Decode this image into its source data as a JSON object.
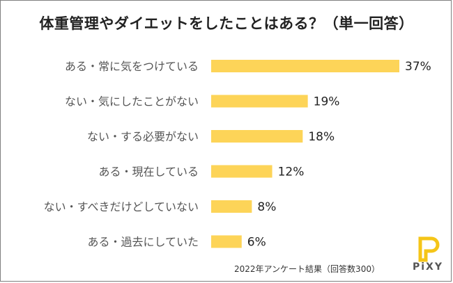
{
  "title": "体重管理やダイエットをしたことはある？（単一回答）",
  "footnote": "2022年アンケート結果（回答数300）",
  "brand": {
    "name": "PiXY",
    "color": "#f5c518"
  },
  "colors": {
    "bar": "#fdd458"
  },
  "chart_data": {
    "type": "bar",
    "orientation": "horizontal",
    "title": "体重管理やダイエットをしたことはある？（単一回答）",
    "categories": [
      "ある・常に気をつけている",
      "ない・気にしたことがない",
      "ない・する必要がない",
      "ある・現在している",
      "ない・すべきだけどしていない",
      "ある・過去にしていた"
    ],
    "values": [
      37,
      19,
      18,
      12,
      8,
      6
    ],
    "value_labels": [
      "37%",
      "19%",
      "18%",
      "12%",
      "8%",
      "6%"
    ],
    "unit": "%",
    "xlim": [
      0,
      40
    ],
    "grid": false,
    "legend": "none"
  }
}
